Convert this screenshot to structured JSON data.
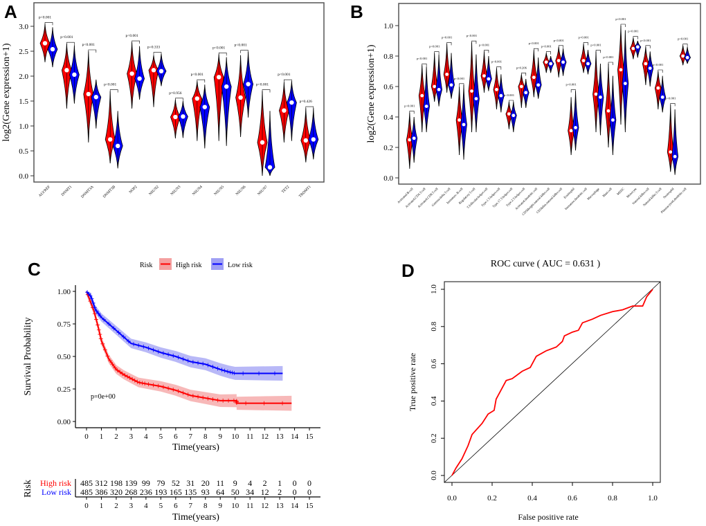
{
  "colors": {
    "high": "#ff0000",
    "low": "#0000ff",
    "band_high": "#f4a0a0",
    "band_low": "#a0a0f4"
  },
  "chart_data": [
    {
      "panel": "A",
      "type": "violin",
      "ylabel": "log2(Gene expression+1)",
      "ylim": [
        0,
        3.2
      ],
      "yticks": [
        "0.0",
        "0.5",
        "1.0",
        "1.5",
        "2.0",
        "2.5",
        "3.0"
      ],
      "categories": [
        "ALYREF",
        "DNMT1",
        "DNMT3A",
        "DNMT3B",
        "NOP2",
        "NSUN2",
        "NSUN3",
        "NSUN4",
        "NSUN5",
        "NSUN6",
        "NSUN7",
        "TET2",
        "TRDMT1"
      ],
      "pvalues": [
        "p<0.001",
        "p<0.001",
        "p<0.001",
        "p<0.001",
        "p<0.001",
        "p=0.333",
        "p=0.956",
        "p<0.001",
        "p<0.001",
        "p<0.001",
        "p<0.001",
        "p<0.001",
        "p=0.426"
      ],
      "high": [
        [
          2.66,
          2.28,
          3.05
        ],
        [
          2.12,
          1.35,
          2.65
        ],
        [
          1.64,
          0.67,
          2.5
        ],
        [
          0.73,
          0.25,
          1.7
        ],
        [
          2.05,
          1.35,
          2.68
        ],
        [
          2.12,
          1.38,
          2.42
        ],
        [
          1.18,
          0.75,
          1.53
        ],
        [
          1.55,
          0.7,
          1.9
        ],
        [
          1.98,
          0.7,
          2.44
        ],
        [
          1.57,
          0.78,
          2.42
        ],
        [
          0.67,
          0,
          1.7
        ],
        [
          1.31,
          0.67,
          1.88
        ],
        [
          0.71,
          0.27,
          1.36
        ]
      ],
      "low": [
        [
          2.54,
          2.18,
          2.98
        ],
        [
          2.03,
          1.45,
          2.62
        ],
        [
          1.58,
          0.95,
          1.93
        ],
        [
          0.6,
          0.15,
          1.3
        ],
        [
          1.95,
          1.53,
          2.6
        ],
        [
          2.1,
          1.8,
          2.45
        ],
        [
          1.19,
          0.76,
          1.5
        ],
        [
          1.38,
          0.55,
          1.83
        ],
        [
          1.79,
          0.6,
          2.38
        ],
        [
          1.84,
          1.17,
          2.49
        ],
        [
          0.17,
          0,
          1.3
        ],
        [
          1.47,
          0.7,
          1.9
        ],
        [
          0.73,
          0.33,
          1.36
        ]
      ]
    },
    {
      "panel": "B",
      "type": "violin",
      "ylabel": "log2(Gene expression+1)",
      "ylim": [
        0,
        1.05
      ],
      "yticks": [
        "0.0",
        "0.2",
        "0.4",
        "0.6",
        "0.8",
        "1.0"
      ],
      "categories": [
        "Activated.B.cell",
        "Activated.CD4.T.cell",
        "Activated.CD8.T.cell",
        "Gamma.delta.T.cell",
        "Immature..B.cell",
        "Regulatory.T.cell",
        "T.follicular.helper.cell",
        "Type.1.T.helper.cell",
        "Type.17.T.helper.cell",
        "Type.2.T.helper.cell",
        "Activated.dendritic.cell",
        "CD56bright.natural.killer.cell",
        "CD56dim.natural.killer.cell",
        "Eosinophil",
        "Immature.dendritic.cell",
        "Macrophage",
        "Mast.cell",
        "MDSC",
        "Monocyte",
        "Natural.killer.cell",
        "Natural.killer.T.cell",
        "Neutrophil",
        "Plasmacytoid.dendritic.cell"
      ],
      "pvalues": [
        "p<0.001",
        "p<0.001",
        "p<0.001",
        "p<0.001",
        "p<0.001",
        "p<0.001",
        "p<0.001",
        "p<0.001",
        "p<0.001",
        "p=0.206",
        "p<0.001",
        "p<0.001",
        "p<0.001",
        "p<0.001",
        "p<0.001",
        "p<0.001",
        "p<0.001",
        "p<0.001",
        "p<0.001",
        "p<0.001",
        "p<0.001",
        "p<0.001",
        "p<0.001"
      ],
      "high": [
        [
          0.25,
          0.06,
          0.43
        ],
        [
          0.54,
          0.3,
          0.74
        ],
        [
          0.6,
          0.5,
          0.82
        ],
        [
          0.68,
          0.56,
          0.88
        ],
        [
          0.38,
          0.15,
          0.6
        ],
        [
          0.57,
          0.3,
          0.89
        ],
        [
          0.67,
          0.56,
          0.83
        ],
        [
          0.58,
          0.45,
          0.72
        ],
        [
          0.42,
          0.32,
          0.5
        ],
        [
          0.6,
          0.46,
          0.68
        ],
        [
          0.66,
          0.53,
          0.84
        ],
        [
          0.76,
          0.69,
          0.82
        ],
        [
          0.77,
          0.66,
          0.86
        ],
        [
          0.31,
          0.15,
          0.53
        ],
        [
          0.77,
          0.69,
          0.88
        ],
        [
          0.55,
          0.3,
          0.83
        ],
        [
          0.44,
          0.2,
          0.75
        ],
        [
          0.71,
          0.35,
          1.0
        ],
        [
          0.85,
          0.78,
          0.92
        ],
        [
          0.75,
          0.61,
          0.86
        ],
        [
          0.59,
          0.45,
          0.7
        ],
        [
          0.17,
          0.04,
          0.48
        ],
        [
          0.8,
          0.74,
          0.87
        ]
      ],
      "low": [
        [
          0.26,
          0.1,
          0.4
        ],
        [
          0.47,
          0.3,
          0.73
        ],
        [
          0.58,
          0.47,
          0.81
        ],
        [
          0.61,
          0.52,
          0.82
        ],
        [
          0.35,
          0.12,
          0.61
        ],
        [
          0.52,
          0.3,
          0.81
        ],
        [
          0.65,
          0.57,
          0.8
        ],
        [
          0.54,
          0.43,
          0.68
        ],
        [
          0.41,
          0.3,
          0.5
        ],
        [
          0.56,
          0.46,
          0.65
        ],
        [
          0.61,
          0.52,
          0.79
        ],
        [
          0.75,
          0.69,
          0.8
        ],
        [
          0.76,
          0.67,
          0.85
        ],
        [
          0.33,
          0.18,
          0.57
        ],
        [
          0.75,
          0.68,
          0.84
        ],
        [
          0.53,
          0.28,
          0.75
        ],
        [
          0.38,
          0.15,
          0.67
        ],
        [
          0.62,
          0.3,
          0.97
        ],
        [
          0.86,
          0.79,
          0.9
        ],
        [
          0.72,
          0.6,
          0.83
        ],
        [
          0.53,
          0.43,
          0.67
        ],
        [
          0.14,
          0.02,
          0.45
        ],
        [
          0.79,
          0.75,
          0.86
        ]
      ]
    },
    {
      "panel": "C",
      "type": "line",
      "subtype": "kaplan-meier",
      "legend_title": "Risk",
      "legend_position": "top",
      "series": [
        {
          "name": "High risk",
          "points": [
            [
              0,
              1
            ],
            [
              0.5,
              0.85
            ],
            [
              0.8,
              0.72
            ],
            [
              1,
              0.62
            ],
            [
              1.5,
              0.48
            ],
            [
              2,
              0.4
            ],
            [
              2.5,
              0.36
            ],
            [
              3,
              0.33
            ],
            [
              3.5,
              0.3
            ],
            [
              4,
              0.29
            ],
            [
              5,
              0.27
            ],
            [
              6,
              0.24
            ],
            [
              7,
              0.2
            ],
            [
              8,
              0.18
            ],
            [
              9,
              0.16
            ],
            [
              10.1,
              0.16
            ],
            [
              10.1,
              0.14
            ],
            [
              13.8,
              0.14
            ]
          ]
        },
        {
          "name": "Low risk",
          "points": [
            [
              0,
              1
            ],
            [
              0.3,
              0.96
            ],
            [
              0.6,
              0.86
            ],
            [
              1,
              0.8
            ],
            [
              2,
              0.7
            ],
            [
              3,
              0.6
            ],
            [
              4,
              0.57
            ],
            [
              5,
              0.53
            ],
            [
              6,
              0.5
            ],
            [
              7,
              0.46
            ],
            [
              8,
              0.44
            ],
            [
              9,
              0.4
            ],
            [
              9.6,
              0.38
            ],
            [
              10,
              0.37
            ],
            [
              13.2,
              0.37
            ]
          ]
        }
      ],
      "ylabel": "Survival Probability",
      "xlabel": "Time(years)",
      "yticks": [
        "0.00",
        "0.25",
        "0.50",
        "0.75",
        "1.00"
      ],
      "xticks": [
        "0",
        "1",
        "2",
        "3",
        "4",
        "5",
        "6",
        "7",
        "8",
        "9",
        "10",
        "11",
        "12",
        "13",
        "14",
        "15"
      ],
      "xlim": [
        0,
        15
      ],
      "ylim": [
        0,
        1
      ],
      "pvalue": "p=0e+00",
      "risk_table": {
        "title": "Risk",
        "rows": [
          {
            "name": "High risk",
            "counts": [
              "485",
              "312",
              "198",
              "139",
              "99",
              "79",
              "52",
              "31",
              "20",
              "11",
              "9",
              "4",
              "2",
              "1",
              "0",
              "0"
            ]
          },
          {
            "name": "Low risk",
            "counts": [
              "485",
              "386",
              "320",
              "268",
              "236",
              "193",
              "165",
              "135",
              "93",
              "64",
              "50",
              "34",
              "12",
              "2",
              "0",
              "0"
            ]
          }
        ],
        "xlabel": "Time(years)"
      }
    },
    {
      "panel": "D",
      "type": "line",
      "subtype": "roc",
      "title": "ROC curve ( AUC =  0.631 )",
      "auc": 0.631,
      "xlabel": "False positive rate",
      "ylabel": "True positive rate",
      "xticks": [
        "0.0",
        "0.2",
        "0.4",
        "0.6",
        "0.8",
        "1.0"
      ],
      "yticks": [
        "0.0",
        "0.2",
        "0.4",
        "0.6",
        "0.8",
        "1.0"
      ],
      "xlim": [
        0,
        1
      ],
      "ylim": [
        0,
        1
      ],
      "points": [
        [
          0,
          0
        ],
        [
          0.02,
          0.04
        ],
        [
          0.05,
          0.09
        ],
        [
          0.08,
          0.16
        ],
        [
          0.1,
          0.22
        ],
        [
          0.15,
          0.28
        ],
        [
          0.18,
          0.33
        ],
        [
          0.21,
          0.35
        ],
        [
          0.22,
          0.41
        ],
        [
          0.25,
          0.47
        ],
        [
          0.27,
          0.51
        ],
        [
          0.3,
          0.52
        ],
        [
          0.35,
          0.56
        ],
        [
          0.39,
          0.58
        ],
        [
          0.42,
          0.64
        ],
        [
          0.47,
          0.67
        ],
        [
          0.52,
          0.69
        ],
        [
          0.55,
          0.72
        ],
        [
          0.56,
          0.75
        ],
        [
          0.6,
          0.77
        ],
        [
          0.63,
          0.78
        ],
        [
          0.65,
          0.82
        ],
        [
          0.7,
          0.84
        ],
        [
          0.74,
          0.86
        ],
        [
          0.8,
          0.88
        ],
        [
          0.85,
          0.89
        ],
        [
          0.9,
          0.91
        ],
        [
          0.95,
          0.91
        ],
        [
          0.97,
          0.96
        ],
        [
          1,
          1
        ]
      ]
    }
  ],
  "panel_labels": [
    "A",
    "B",
    "C",
    "D"
  ]
}
